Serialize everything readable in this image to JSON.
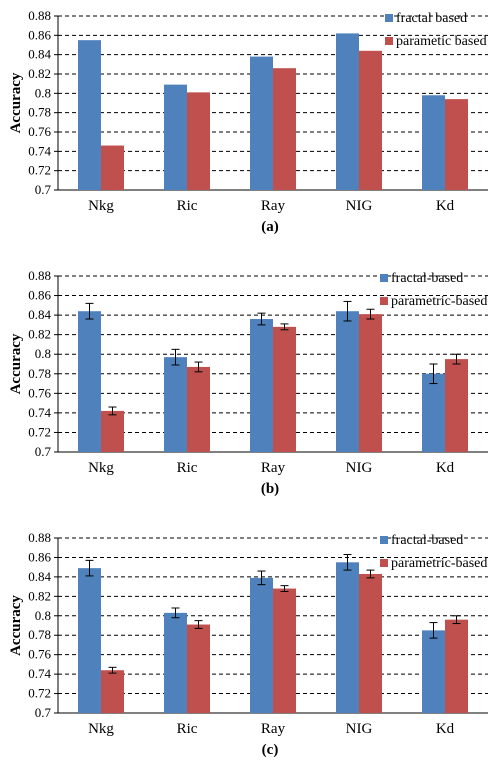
{
  "chart_data": [
    {
      "type": "bar",
      "panel_label": "(a)",
      "categories": [
        "Nkg",
        "Ric",
        "Ray",
        "NIG",
        "Kd"
      ],
      "ylabel": "Accuracy",
      "ylim": [
        0.7,
        0.88
      ],
      "yticks": [
        "0.7",
        "0.72",
        "0.74",
        "0.76",
        "0.78",
        "0.8",
        "0.82",
        "0.84",
        "0.86",
        "0.88"
      ],
      "grid": true,
      "legend_position": "top-right",
      "error_bars": false,
      "series": [
        {
          "name": "fractal based",
          "color": "#4f81bd",
          "values": [
            0.855,
            0.809,
            0.838,
            0.862,
            0.798
          ]
        },
        {
          "name": "parametic based",
          "color": "#c0504d",
          "values": [
            0.746,
            0.801,
            0.826,
            0.844,
            0.794
          ]
        }
      ]
    },
    {
      "type": "bar",
      "panel_label": "(b)",
      "categories": [
        "Nkg",
        "Ric",
        "Ray",
        "NIG",
        "Kd"
      ],
      "ylabel": "Accuracy",
      "ylim": [
        0.7,
        0.88
      ],
      "yticks": [
        "0.7",
        "0.72",
        "0.74",
        "0.76",
        "0.78",
        "0.8",
        "0.82",
        "0.84",
        "0.86",
        "0.88"
      ],
      "grid": true,
      "legend_position": "top-right",
      "error_bars": true,
      "series": [
        {
          "name": "fractal-based",
          "color": "#4f81bd",
          "values": [
            0.844,
            0.797,
            0.836,
            0.844,
            0.78
          ],
          "errors": [
            0.008,
            0.008,
            0.006,
            0.01,
            0.01
          ]
        },
        {
          "name": "parametric-based",
          "color": "#c0504d",
          "values": [
            0.742,
            0.787,
            0.828,
            0.841,
            0.795
          ],
          "errors": [
            0.004,
            0.005,
            0.003,
            0.005,
            0.005
          ]
        }
      ]
    },
    {
      "type": "bar",
      "panel_label": "(c)",
      "categories": [
        "Nkg",
        "Ric",
        "Ray",
        "NIG",
        "Kd"
      ],
      "ylabel": "Accuracy",
      "ylim": [
        0.7,
        0.88
      ],
      "yticks": [
        "0.7",
        "0.72",
        "0.74",
        "0.76",
        "0.78",
        "0.8",
        "0.82",
        "0.84",
        "0.86",
        "0.88"
      ],
      "grid": true,
      "legend_position": "top-right",
      "error_bars": true,
      "series": [
        {
          "name": "fractal-based",
          "color": "#4f81bd",
          "values": [
            0.849,
            0.803,
            0.839,
            0.855,
            0.785
          ],
          "errors": [
            0.008,
            0.005,
            0.007,
            0.008,
            0.008
          ]
        },
        {
          "name": "parametric-based",
          "color": "#c0504d",
          "values": [
            0.744,
            0.791,
            0.828,
            0.843,
            0.796
          ],
          "errors": [
            0.003,
            0.004,
            0.003,
            0.004,
            0.004
          ]
        }
      ]
    }
  ]
}
